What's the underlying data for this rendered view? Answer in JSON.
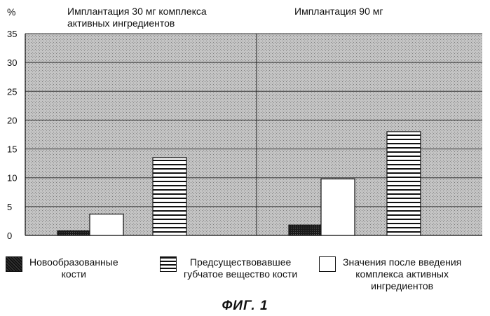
{
  "chart_data": {
    "type": "bar",
    "ylabel": "%",
    "ylim": [
      0,
      35
    ],
    "yticks": [
      0,
      5,
      10,
      15,
      20,
      25,
      30,
      35
    ],
    "groups": [
      {
        "title": "Имплантация 30 мг комплекса\nактивных ингредиентов"
      },
      {
        "title": "Имплантация 90 мг"
      }
    ],
    "series": [
      {
        "name": "Новообразованные\nкости",
        "values": [
          0.8,
          1.8
        ],
        "fill": "dark"
      },
      {
        "name": "Предсуществовавшее\nгубчатое вещество кости",
        "values": [
          13.5,
          18
        ],
        "fill": "striped"
      },
      {
        "name": "Значения после введения\nкомплекса активных\nингредиентов",
        "values": [
          3.7,
          9.8
        ],
        "fill": "white"
      }
    ],
    "grid": true,
    "legend_position": "bottom"
  },
  "caption": "ФИГ. 1",
  "colors": {
    "plot_bg": "#b8b8b8",
    "dark": "#1a1a1a",
    "white": "#ffffff",
    "line": "#111111"
  }
}
